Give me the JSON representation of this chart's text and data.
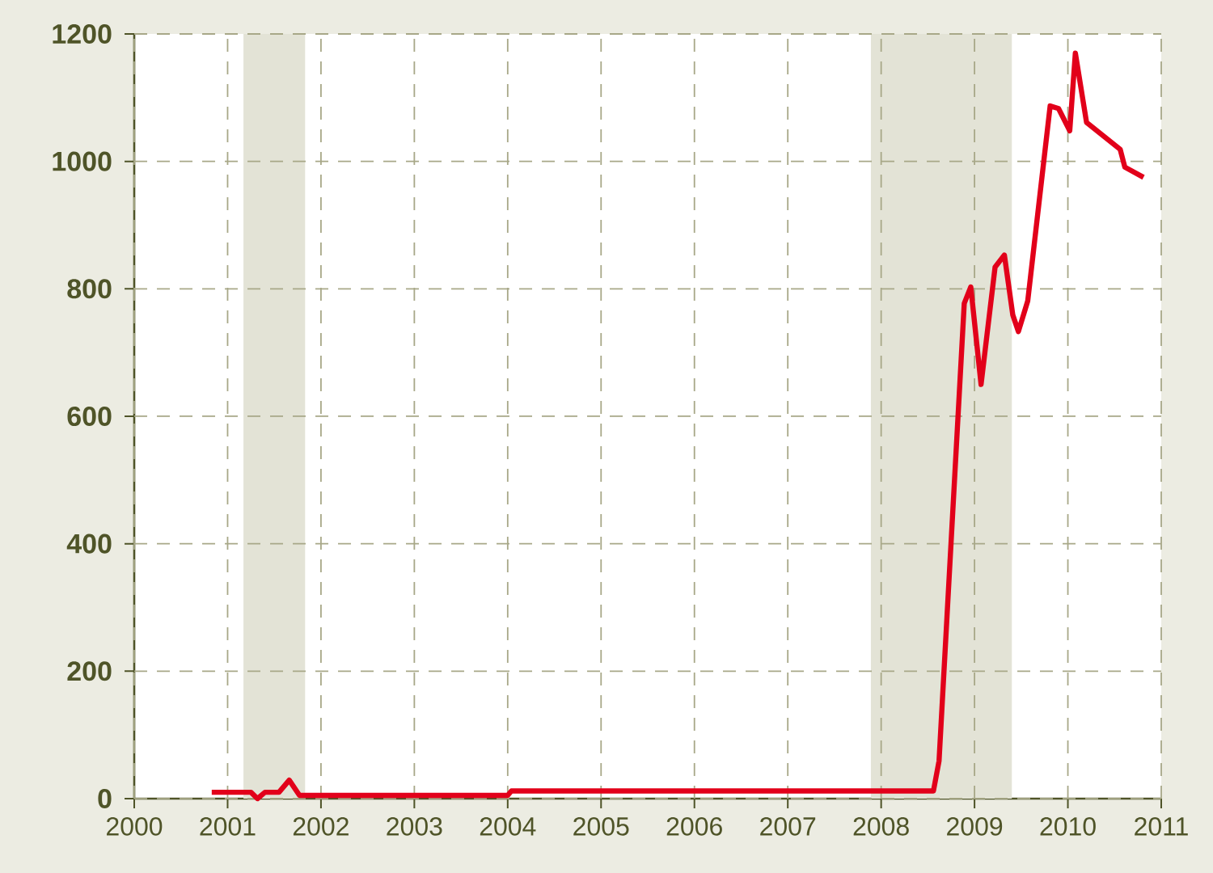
{
  "chart_data": {
    "type": "line",
    "x": [
      2000.83,
      2001.25,
      2001.32,
      2001.4,
      2001.55,
      2001.66,
      2001.77,
      2004.0,
      2004.04,
      2008.56,
      2008.62,
      2008.89,
      2008.96,
      2009.07,
      2009.22,
      2009.32,
      2009.41,
      2009.47,
      2009.57,
      2009.81,
      2009.9,
      2010.02,
      2010.08,
      2010.2,
      2010.56,
      2010.61,
      2010.81
    ],
    "series": [
      {
        "color": "#e2001a",
        "values": [
          10,
          10,
          0,
          10,
          10,
          29,
          5,
          5,
          12,
          12,
          59,
          777,
          803,
          650,
          834,
          853,
          759,
          733,
          781,
          1087,
          1083,
          1048,
          1170,
          1061,
          1019,
          991,
          975
        ]
      }
    ],
    "xlim": [
      2000,
      2011
    ],
    "xticks": [
      2000,
      2001,
      2002,
      2003,
      2004,
      2005,
      2006,
      2007,
      2008,
      2009,
      2010,
      2011
    ],
    "ylim": [
      0,
      1200
    ],
    "yticks": [
      0,
      200,
      400,
      600,
      800,
      1000,
      1200
    ],
    "bands": [
      {
        "axis": "x",
        "from": 2001.17,
        "to": 2001.83,
        "color": "#e3e3d6"
      },
      {
        "axis": "x",
        "from": 2007.89,
        "to": 2009.4,
        "color": "#e3e3d6"
      }
    ],
    "grid": true,
    "marker": "none",
    "line_style": "solid"
  }
}
